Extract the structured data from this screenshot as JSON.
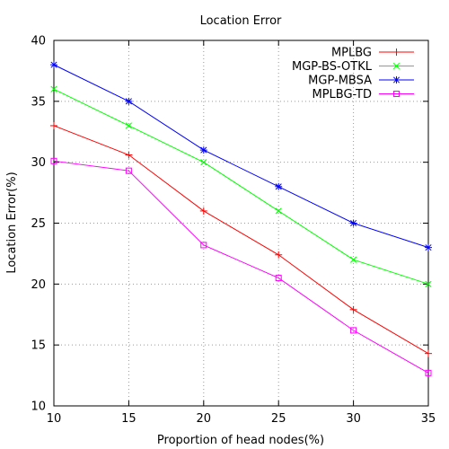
{
  "chart_data": {
    "type": "line",
    "title": "Location Error",
    "xlabel": "Proportion of head nodes(%)",
    "ylabel": "Location Error(%)",
    "x": [
      10,
      15,
      20,
      25,
      30,
      35
    ],
    "xlim": [
      10,
      35
    ],
    "ylim": [
      10,
      40
    ],
    "xticks": [
      "10",
      "15",
      "20",
      "25",
      "30",
      "35"
    ],
    "yticks": [
      "10",
      "15",
      "20",
      "25",
      "30",
      "35",
      "40"
    ],
    "grid": true,
    "legend_position": "top-right",
    "series": [
      {
        "name": "MPLBG",
        "color": "#ff0000",
        "marker": "plus",
        "values": [
          33,
          30.6,
          26,
          22.4,
          17.9,
          14.3
        ]
      },
      {
        "name": "MGP-BS-OTKL",
        "color": "#00ff00",
        "marker": "cross",
        "values": [
          36,
          33,
          30,
          26,
          22,
          20
        ]
      },
      {
        "name": "MGP-MBSA",
        "color": "#0000ff",
        "marker": "star",
        "values": [
          38,
          35,
          31,
          28,
          25,
          23
        ]
      },
      {
        "name": "MPLBG-TD",
        "color": "#ff00ff",
        "marker": "square",
        "values": [
          30.1,
          29.3,
          23.2,
          20.5,
          16.2,
          12.7
        ]
      }
    ]
  }
}
